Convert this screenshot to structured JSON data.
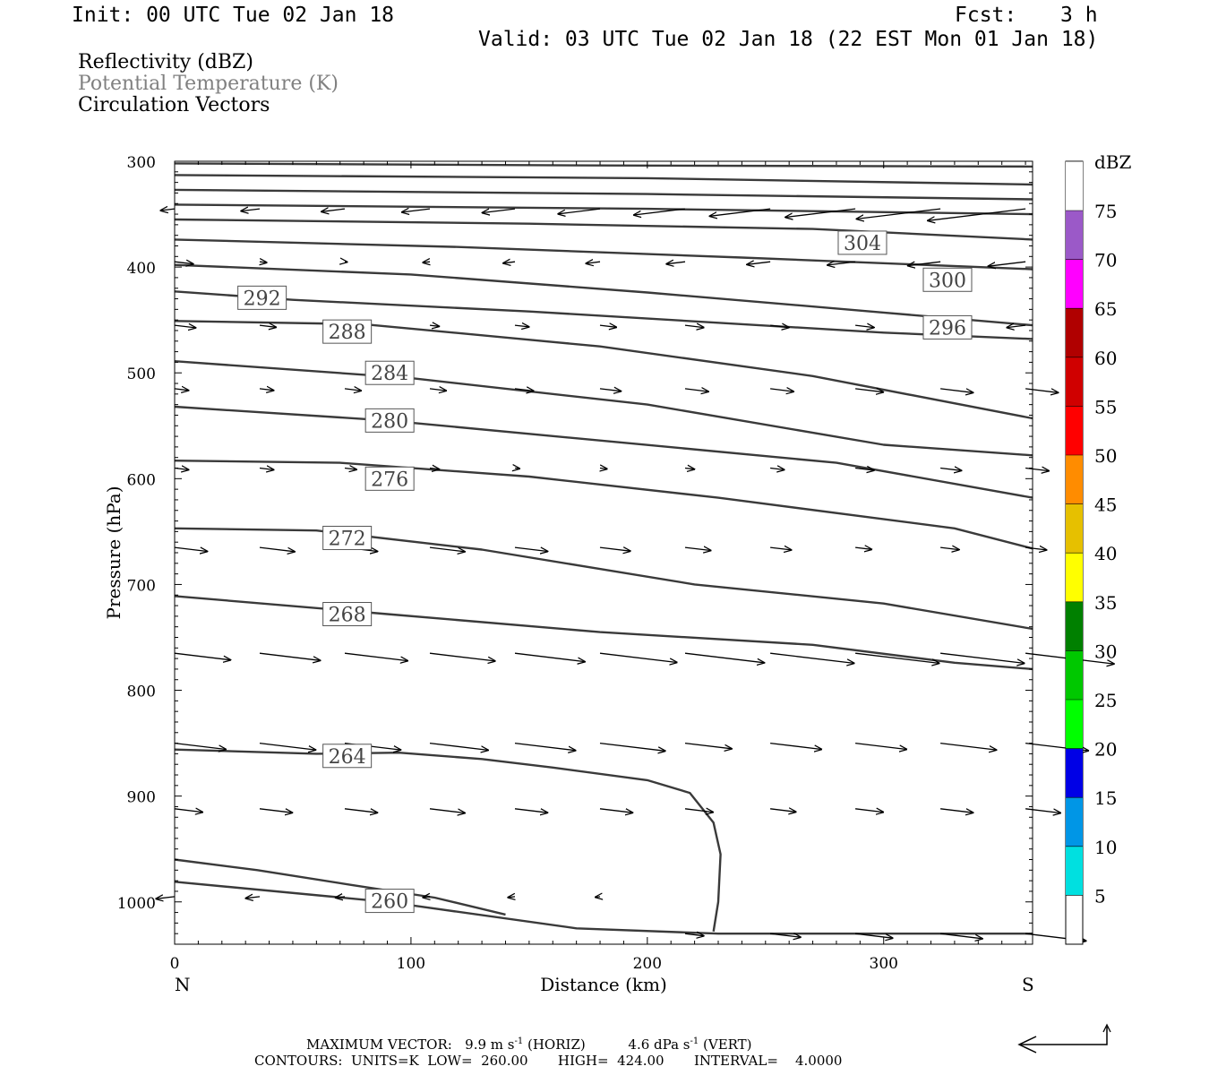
{
  "header": {
    "init": "Init: 00 UTC Tue 02 Jan 18",
    "fcst_label": "Fcst:",
    "fcst_value": "3 h",
    "valid": "Valid: 03 UTC Tue 02 Jan 18 (22 EST Mon 01 Jan 18)"
  },
  "fields": [
    {
      "label": "Reflectivity (dBZ)",
      "color": "#000000"
    },
    {
      "label": "Potential Temperature (K)",
      "color": "#808080"
    },
    {
      "label": "Circulation Vectors",
      "color": "#000000"
    }
  ],
  "footer": {
    "max_vector_label": "MAXIMUM VECTOR:",
    "horiz_value": "9.9 m s",
    "horiz_exp": "-1",
    "horiz_tag": "(HORIZ)",
    "vert_value": "4.6 dPa s",
    "vert_exp": "-1",
    "vert_tag": "(VERT)",
    "contours": "CONTOURS:  UNITS=K  LOW=  260.00       HIGH=  424.00       INTERVAL=    4.0000"
  },
  "colorbar": {
    "unit": "dBZ",
    "labels": [
      "5",
      "10",
      "15",
      "20",
      "25",
      "30",
      "35",
      "40",
      "45",
      "50",
      "55",
      "60",
      "65",
      "70",
      "75"
    ],
    "colors": [
      "#00e0e0",
      "#0096e6",
      "#0000e6",
      "#00ff00",
      "#00c800",
      "#008000",
      "#ffff00",
      "#e6c000",
      "#ff8c00",
      "#ff0000",
      "#d00000",
      "#b00000",
      "#ff00ff",
      "#9b59c8",
      "#ffffff"
    ]
  },
  "chart_data": {
    "type": "cross-section",
    "xlabel": "Distance (km)",
    "ylabel": "Pressure (hPa)",
    "xlim": [
      0,
      363
    ],
    "ylim": [
      1040,
      300
    ],
    "x_ticks": [
      0,
      100,
      200,
      300
    ],
    "y_ticks": [
      300,
      400,
      500,
      600,
      700,
      800,
      900,
      1000
    ],
    "x_end_labels": {
      "left": "N",
      "right": "S"
    },
    "contours": [
      {
        "label": "260",
        "points": [
          [
            0,
            960
          ],
          [
            35,
            970
          ],
          [
            75,
            984
          ],
          [
            110,
            996
          ],
          [
            140,
            1012
          ]
        ],
        "label_at": [
          91,
          999
        ]
      },
      {
        "label": "264",
        "points": [
          [
            0,
            856
          ],
          [
            60,
            860
          ],
          [
            95,
            859
          ],
          [
            130,
            865
          ],
          [
            160,
            873
          ],
          [
            200,
            885
          ],
          [
            218,
            897
          ],
          [
            228,
            925
          ],
          [
            231,
            955
          ],
          [
            230,
            1000
          ],
          [
            228,
            1028
          ]
        ],
        "label_at": [
          73,
          862
        ]
      },
      {
        "label": "268",
        "points": [
          [
            0,
            711
          ],
          [
            90,
            728
          ],
          [
            180,
            745
          ],
          [
            270,
            757
          ],
          [
            330,
            774
          ],
          [
            363,
            780
          ]
        ],
        "label_at": [
          73,
          728
        ]
      },
      {
        "label": "272",
        "points": [
          [
            0,
            647
          ],
          [
            60,
            649
          ],
          [
            130,
            667
          ],
          [
            220,
            700
          ],
          [
            300,
            718
          ],
          [
            363,
            742
          ]
        ],
        "label_at": [
          73,
          656
        ]
      },
      {
        "label": "276",
        "points": [
          [
            0,
            583
          ],
          [
            70,
            585
          ],
          [
            150,
            598
          ],
          [
            230,
            618
          ],
          [
            330,
            647
          ],
          [
            363,
            666
          ]
        ],
        "label_at": [
          91,
          600
        ]
      },
      {
        "label": "280",
        "points": [
          [
            0,
            532
          ],
          [
            90,
            545
          ],
          [
            190,
            566
          ],
          [
            280,
            585
          ],
          [
            363,
            618
          ]
        ],
        "label_at": [
          91,
          545
        ]
      },
      {
        "label": "284",
        "points": [
          [
            0,
            489
          ],
          [
            100,
            505
          ],
          [
            200,
            530
          ],
          [
            300,
            568
          ],
          [
            363,
            578
          ]
        ],
        "label_at": [
          91,
          500
        ]
      },
      {
        "label": "288",
        "points": [
          [
            0,
            451
          ],
          [
            80,
            454
          ],
          [
            180,
            475
          ],
          [
            270,
            503
          ],
          [
            363,
            543
          ]
        ],
        "label_at": [
          73,
          461
        ]
      },
      {
        "label": "292",
        "points": [
          [
            0,
            423
          ],
          [
            50,
            431
          ],
          [
            150,
            442
          ],
          [
            300,
            462
          ],
          [
            363,
            468
          ]
        ],
        "label_at": [
          37,
          429
        ]
      },
      {
        "label": "296",
        "points": [
          [
            0,
            398
          ],
          [
            100,
            407
          ],
          [
            200,
            424
          ],
          [
            300,
            443
          ],
          [
            363,
            455
          ]
        ],
        "label_at": [
          327,
          457
        ]
      },
      {
        "label": "300",
        "points": [
          [
            0,
            374
          ],
          [
            120,
            381
          ],
          [
            240,
            391
          ],
          [
            363,
            402
          ]
        ],
        "label_at": [
          327,
          412
        ]
      },
      {
        "label": "304",
        "points": [
          [
            0,
            355
          ],
          [
            150,
            359
          ],
          [
            270,
            364
          ],
          [
            363,
            374
          ]
        ],
        "label_at": [
          291,
          377
        ]
      },
      {
        "label": "",
        "points": [
          [
            0,
            341
          ],
          [
            200,
            345
          ],
          [
            363,
            350
          ]
        ]
      },
      {
        "label": "",
        "points": [
          [
            0,
            327
          ],
          [
            200,
            331
          ],
          [
            363,
            336
          ]
        ]
      },
      {
        "label": "",
        "points": [
          [
            0,
            313
          ],
          [
            200,
            316
          ],
          [
            363,
            322
          ]
        ]
      },
      {
        "label": "",
        "points": [
          [
            0,
            302
          ],
          [
            180,
            304
          ],
          [
            363,
            305
          ]
        ]
      },
      {
        "label": "",
        "points": [
          [
            0,
            981
          ],
          [
            90,
            1000
          ],
          [
            170,
            1025
          ],
          [
            230,
            1030
          ],
          [
            363,
            1030
          ]
        ]
      }
    ],
    "vectors": [
      {
        "level": 345,
        "start": 0,
        "dx": [
          -6,
          -8,
          -10,
          -12,
          -14,
          -18,
          -22,
          -26,
          -30,
          -36,
          -42
        ]
      },
      {
        "level": 395,
        "start": 0,
        "dx": [
          8,
          3,
          1,
          -3,
          -5,
          -6,
          -8,
          -10,
          -12,
          -14,
          -16
        ]
      },
      {
        "level": 455,
        "start": 0,
        "dx": [
          9,
          7,
          5,
          4,
          6,
          7,
          8,
          8,
          8,
          0,
          -8
        ]
      },
      {
        "level": 515,
        "start": 0,
        "dx": [
          6,
          6,
          7,
          7,
          8,
          9,
          10,
          10,
          12,
          14,
          14
        ]
      },
      {
        "level": 590,
        "start": 0,
        "dx": [
          6,
          6,
          5,
          4,
          2,
          3,
          4,
          6,
          8,
          9,
          10
        ]
      },
      {
        "level": 665,
        "start": 0,
        "dx": [
          14,
          15,
          14,
          15,
          14,
          13,
          11,
          9,
          7,
          8,
          9
        ]
      },
      {
        "level": 765,
        "start": 0,
        "dx": [
          24,
          26,
          27,
          28,
          30,
          33,
          34,
          36,
          36,
          36,
          38
        ]
      },
      {
        "level": 850,
        "start": 0,
        "dx": [
          22,
          24,
          24,
          25,
          26,
          28,
          20,
          22,
          22,
          24,
          27
        ]
      },
      {
        "level": 912,
        "start": 0,
        "dx": [
          12,
          14,
          14,
          15,
          14,
          14,
          12,
          11,
          12,
          14,
          15
        ]
      },
      {
        "level": 995,
        "start": 0,
        "dx": [
          -8,
          -6,
          -4,
          -3,
          -3,
          -2,
          0,
          0,
          0,
          0,
          0
        ]
      },
      {
        "level": 1030,
        "start": 0,
        "dx": [
          0,
          0,
          0,
          0,
          0,
          0,
          8,
          13,
          16,
          18,
          26
        ]
      }
    ]
  }
}
